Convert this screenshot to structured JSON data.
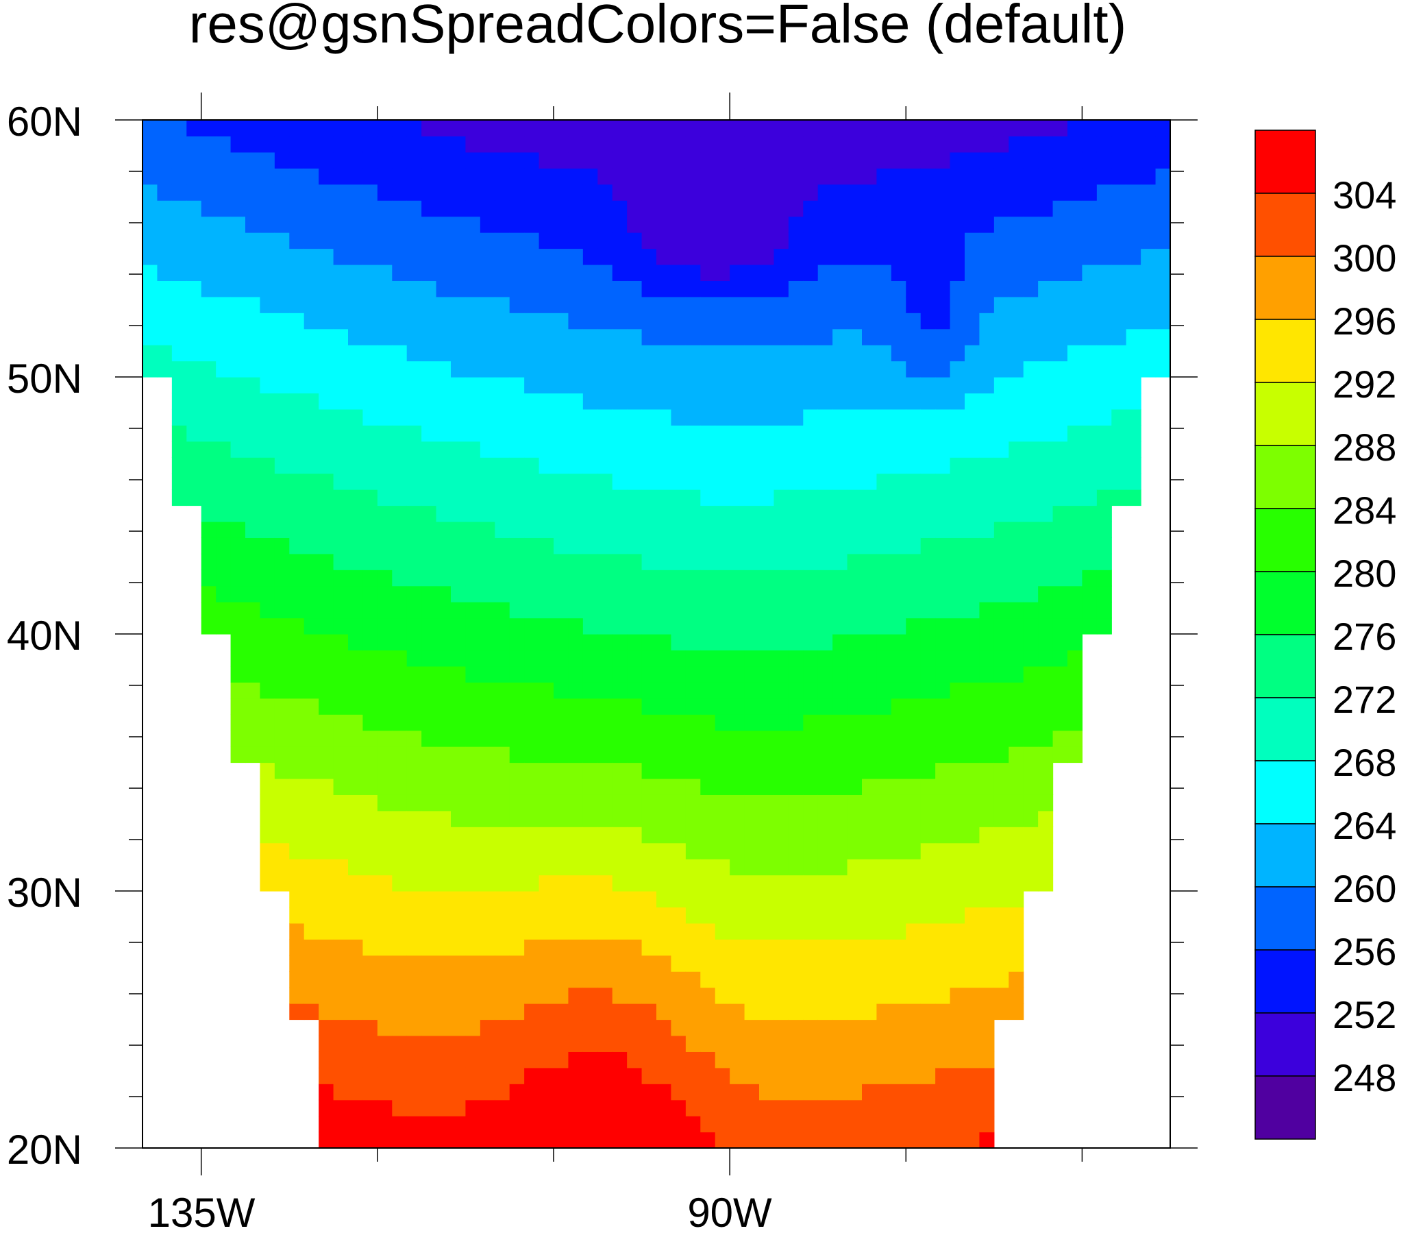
{
  "chart_data": {
    "type": "heatmap",
    "subtype": "filled-contour-map",
    "title": "res@gsnSpreadColors=False (default)",
    "xlabel": "",
    "ylabel": "",
    "x_ticks": [
      "135W",
      "90W"
    ],
    "y_ticks": [
      "20N",
      "30N",
      "40N",
      "50N",
      "60N"
    ],
    "xlim_deg": [
      -140,
      -52.5
    ],
    "ylim_deg": [
      20,
      60
    ],
    "grid": false,
    "legend": {
      "type": "colorbar",
      "placement": "right",
      "labels": [
        "304",
        "300",
        "296",
        "292",
        "288",
        "284",
        "280",
        "276",
        "272",
        "268",
        "264",
        "260",
        "256",
        "252",
        "248"
      ],
      "colors": [
        "#ff0000",
        "#ff5000",
        "#ffa000",
        "#ffe600",
        "#c8ff00",
        "#7dff00",
        "#28ff00",
        "#00ff2d",
        "#00ff82",
        "#00ffbe",
        "#00ffff",
        "#00b4ff",
        "#0064ff",
        "#0014ff",
        "#3c00dc",
        "#5000a0"
      ]
    },
    "mask": "gray? no - white (missing) outside staircase domain",
    "levels_min": 248,
    "levels_max": 304,
    "level_step": 4
  }
}
